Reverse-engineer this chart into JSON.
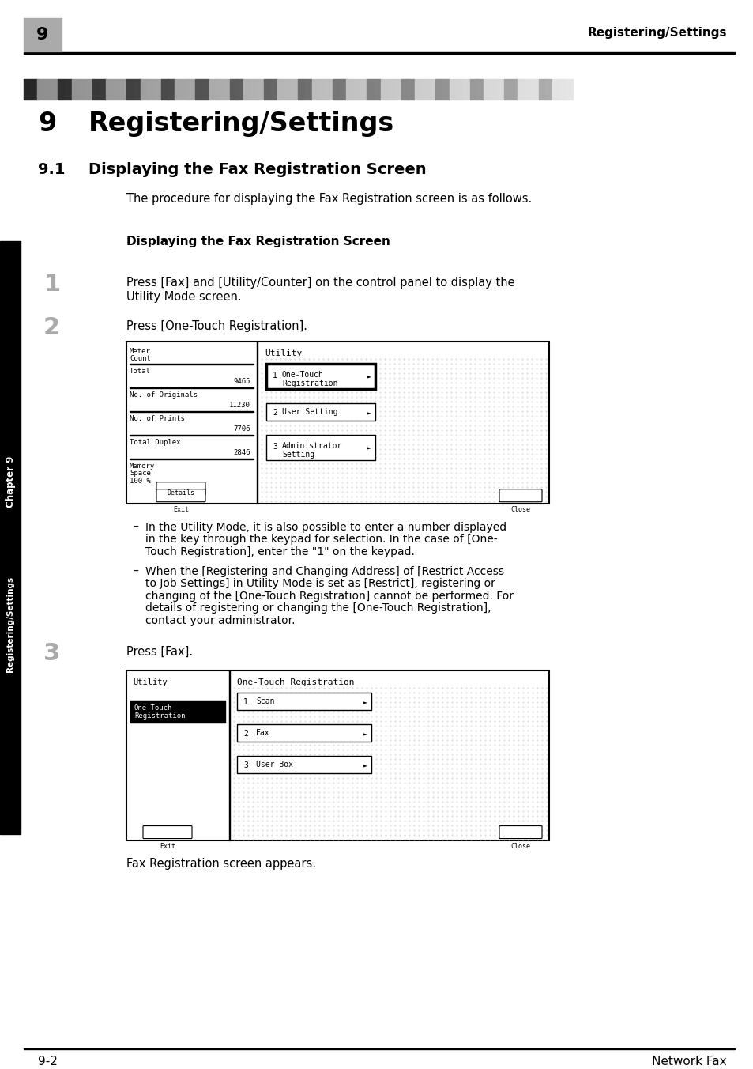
{
  "page_num": "9",
  "header_right": "Registering/Settings",
  "section_num": "9",
  "section_title": "Registering/Settings",
  "subsec_num": "9.1",
  "subsec_title": "Displaying the Fax Registration Screen",
  "intro_text": "The procedure for displaying the Fax Registration screen is as follows.",
  "subsection_bold": "Displaying the Fax Registration Screen",
  "step1_text_line1": "Press [Fax] and [Utility/Counter] on the control panel to display the",
  "step1_text_line2": "Utility Mode screen.",
  "step2_text": "Press [One-Touch Registration].",
  "step3_text": "Press [Fax].",
  "bullet1_line1": "In the Utility Mode, it is also possible to enter a number displayed",
  "bullet1_line2": "in the key through the keypad for selection. In the case of [One-",
  "bullet1_line3": "Touch Registration], enter the \"1\" on the keypad.",
  "bullet2_line1": "When the [Registering and Changing Address] of [Restrict Access",
  "bullet2_line2": "to Job Settings] in Utility Mode is set as [Restrict], registering or",
  "bullet2_line3": "changing of the [One-Touch Registration] cannot be performed. For",
  "bullet2_line4": "details of registering or changing the [One-Touch Registration],",
  "bullet2_line5": "contact your administrator.",
  "caption": "Fax Registration screen appears.",
  "footer_left": "9-2",
  "footer_right": "Network Fax",
  "sidebar_text1": "Chapter 9",
  "sidebar_text2": "Registering/Settings",
  "bg_color": "#ffffff",
  "text_color": "#000000",
  "sidebar_bg": "#000000",
  "sidebar_text_color": "#ffffff",
  "header_box_color": "#aaaaaa",
  "step_num_color": "#aaaaaa"
}
